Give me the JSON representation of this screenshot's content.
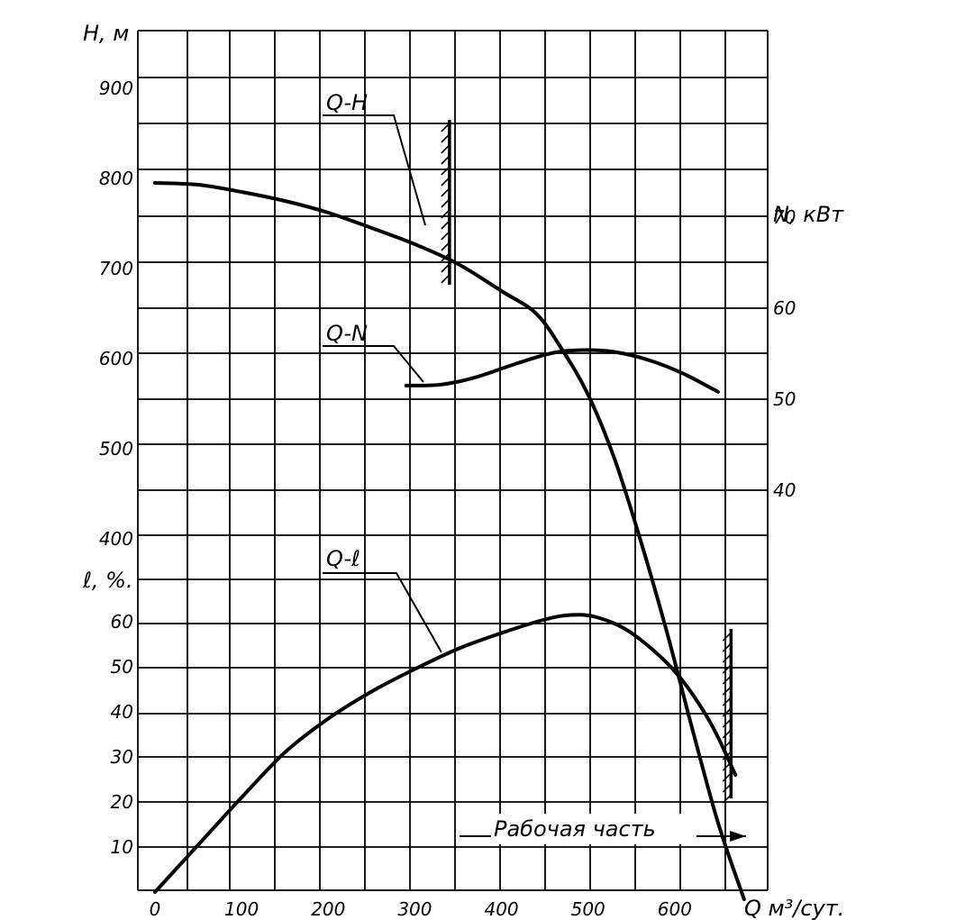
{
  "chart_data": {
    "type": "line",
    "xlabel": "Q м³/сут.",
    "x_ticks": [
      "0",
      "100",
      "200",
      "300",
      "400",
      "500",
      "600"
    ],
    "x_range": [
      0,
      700
    ],
    "grid": true,
    "axes": {
      "head": {
        "label": "H, м",
        "ticks": [
          "900",
          "800",
          "700",
          "600",
          "500",
          "400"
        ],
        "range": [
          0,
          900
        ]
      },
      "power": {
        "label": "N, кВт",
        "ticks": [
          "70",
          "60",
          "50",
          "40"
        ],
        "range": [
          30,
          80
        ]
      },
      "efficiency": {
        "label": "ℓ, %.",
        "ticks": [
          "60",
          "50",
          "40",
          "30",
          "20",
          "10"
        ],
        "range": [
          0,
          70
        ]
      }
    },
    "series": [
      {
        "name": "Q-H",
        "axis": "head",
        "points": [
          [
            0,
            795
          ],
          [
            50,
            793
          ],
          [
            100,
            785
          ],
          [
            150,
            775
          ],
          [
            200,
            762
          ],
          [
            250,
            745
          ],
          [
            300,
            727
          ],
          [
            350,
            705
          ],
          [
            400,
            675
          ],
          [
            440,
            650
          ],
          [
            470,
            610
          ],
          [
            500,
            560
          ],
          [
            530,
            490
          ],
          [
            560,
            400
          ],
          [
            590,
            300
          ],
          [
            620,
            190
          ],
          [
            650,
            85
          ],
          [
            680,
            0
          ]
        ]
      },
      {
        "name": "Q-N",
        "axis": "power",
        "points": [
          [
            290,
            51.5
          ],
          [
            330,
            51.6
          ],
          [
            370,
            52.4
          ],
          [
            420,
            54.0
          ],
          [
            460,
            55.1
          ],
          [
            495,
            55.4
          ],
          [
            530,
            55.2
          ],
          [
            570,
            54.3
          ],
          [
            610,
            52.8
          ],
          [
            650,
            50.8
          ]
        ]
      },
      {
        "name": "Q-ℓ",
        "axis": "efficiency",
        "points": [
          [
            0,
            0
          ],
          [
            50,
            10.5
          ],
          [
            100,
            21
          ],
          [
            150,
            31
          ],
          [
            200,
            38.5
          ],
          [
            250,
            44.5
          ],
          [
            300,
            49.5
          ],
          [
            350,
            54
          ],
          [
            400,
            57.5
          ],
          [
            450,
            60.5
          ],
          [
            480,
            61.5
          ],
          [
            510,
            61
          ],
          [
            550,
            57.5
          ],
          [
            600,
            49
          ],
          [
            640,
            38
          ],
          [
            670,
            26
          ]
        ]
      }
    ],
    "annotations": {
      "work_zone": {
        "label": "Рабочая часть",
        "from": 340,
        "to": 665
      },
      "left_limit_q": 340,
      "right_limit_q": 665
    }
  }
}
